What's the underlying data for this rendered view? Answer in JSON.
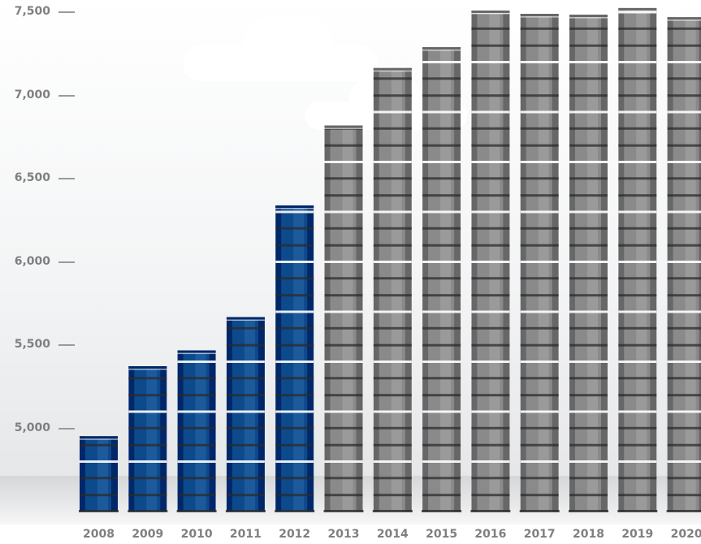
{
  "chart_data": {
    "type": "bar",
    "title": "",
    "xlabel": "",
    "ylabel": "",
    "categories": [
      "2008",
      "2009",
      "2010",
      "2011",
      "2012",
      "2013",
      "2014",
      "2015",
      "2016",
      "2017",
      "2018",
      "2019",
      "2020"
    ],
    "values": [
      4955,
      5375,
      5470,
      5670,
      6340,
      6820,
      7165,
      7290,
      7510,
      7490,
      7485,
      7525,
      7470
    ],
    "ylim": [
      4500,
      7500
    ],
    "y_ticks": [
      5000,
      5500,
      6000,
      6500,
      7000,
      7500
    ],
    "y_tick_labels": [
      "5,000",
      "5,500",
      "6,000",
      "6,500",
      "7,000",
      "7,500"
    ],
    "grid": false,
    "legend": "none",
    "bar_style": "stacked oil barrels",
    "colors": {
      "actual": "#0d4a8c",
      "projected": "#8a8a8b"
    },
    "actual_years": [
      "2008",
      "2009",
      "2010",
      "2011",
      "2012"
    ],
    "projected_years": [
      "2013",
      "2014",
      "2015",
      "2016",
      "2017",
      "2018",
      "2019",
      "2020"
    ]
  }
}
